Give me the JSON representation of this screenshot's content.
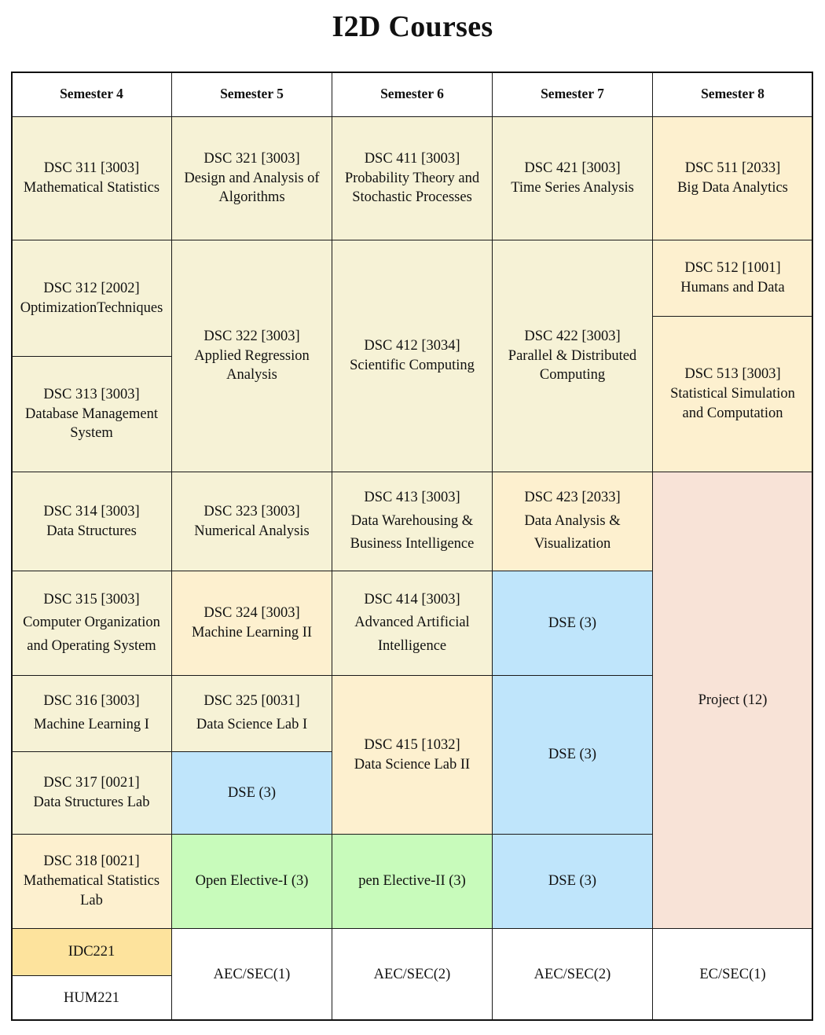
{
  "title": "I2D Courses",
  "headers": [
    "Semester 4",
    "Semester 5",
    "Semester 6",
    "Semester 7",
    "Semester 8"
  ],
  "cells": [
    {
      "id": "dsc311",
      "lines": [
        "DSC 311 [3003]",
        "Mathematical Statistics"
      ]
    },
    {
      "id": "dsc321",
      "lines": [
        "DSC 321 [3003]",
        "Design and Analysis of",
        "Algorithms"
      ]
    },
    {
      "id": "dsc411",
      "lines": [
        "DSC 411 [3003]",
        "Probability Theory and",
        "Stochastic Processes"
      ]
    },
    {
      "id": "dsc421",
      "lines": [
        "DSC 421 [3003]",
        "Time Series Analysis"
      ]
    },
    {
      "id": "dsc511",
      "lines": [
        "DSC 511 [2033]",
        "Big Data Analytics"
      ]
    },
    {
      "id": "dsc312",
      "lines": [
        "DSC 312 [2002]",
        "OptimizationTechniques"
      ]
    },
    {
      "id": "dsc313",
      "lines": [
        "DSC 313 [3003]",
        "Database Management",
        "System"
      ]
    },
    {
      "id": "dsc322",
      "lines": [
        "DSC 322 [3003]",
        "Applied Regression",
        "Analysis"
      ]
    },
    {
      "id": "dsc412",
      "lines": [
        "DSC 412 [3034]",
        "Scientific Computing"
      ]
    },
    {
      "id": "dsc422",
      "lines": [
        "DSC 422 [3003]",
        "Parallel & Distributed",
        "Computing"
      ]
    },
    {
      "id": "dsc512",
      "lines": [
        "DSC 512 [1001]",
        "Humans and Data"
      ]
    },
    {
      "id": "dsc513",
      "lines": [
        "DSC 513 [3003]",
        "Statistical Simulation",
        "and Computation"
      ]
    },
    {
      "id": "dsc314",
      "lines": [
        "DSC 314 [3003]",
        "Data Structures"
      ]
    },
    {
      "id": "dsc323",
      "lines": [
        "DSC 323 [3003]",
        "Numerical Analysis"
      ]
    },
    {
      "id": "dsc413",
      "lines": [
        "DSC 413 [3003]",
        "Data Warehousing &",
        "Business Intelligence"
      ]
    },
    {
      "id": "dsc423",
      "lines": [
        "DSC 423 [2033]",
        "Data Analysis &",
        "Visualization"
      ]
    },
    {
      "id": "project",
      "lines": [
        "Project (12)"
      ]
    },
    {
      "id": "dsc315",
      "lines": [
        "DSC 315 [3003]",
        "Computer Organization",
        "and Operating System"
      ]
    },
    {
      "id": "dsc324",
      "lines": [
        "DSC 324 [3003]",
        "Machine Learning II"
      ]
    },
    {
      "id": "dsc414",
      "lines": [
        "DSC 414 [3003]",
        "Advanced Artificial",
        "Intelligence"
      ]
    },
    {
      "id": "dse7a",
      "lines": [
        "DSE (3)"
      ]
    },
    {
      "id": "dsc316",
      "lines": [
        "DSC 316 [3003]",
        "Machine Learning I"
      ]
    },
    {
      "id": "dsc325",
      "lines": [
        "DSC 325 [0031]",
        "Data Science Lab I"
      ]
    },
    {
      "id": "dsc415",
      "lines": [
        "DSC 415 [1032]",
        "Data Science Lab II"
      ]
    },
    {
      "id": "dse7b",
      "lines": [
        "DSE (3)"
      ]
    },
    {
      "id": "dsc317",
      "lines": [
        "DSC 317 [0021]",
        "Data Structures Lab"
      ]
    },
    {
      "id": "dse5",
      "lines": [
        "DSE (3)"
      ]
    },
    {
      "id": "dsc318",
      "lines": [
        "DSC 318 [0021]",
        "Mathematical Statistics",
        "Lab"
      ]
    },
    {
      "id": "oe1",
      "lines": [
        "Open Elective-I (3)"
      ]
    },
    {
      "id": "oe2",
      "lines": [
        "pen Elective-II (3)"
      ]
    },
    {
      "id": "dse7c",
      "lines": [
        "DSE (3)"
      ]
    },
    {
      "id": "idc221",
      "lines": [
        "IDC221"
      ]
    },
    {
      "id": "hum221",
      "lines": [
        "HUM221"
      ]
    },
    {
      "id": "aec5",
      "lines": [
        "AEC/SEC(1)"
      ]
    },
    {
      "id": "aec6",
      "lines": [
        "AEC/SEC(2)"
      ]
    },
    {
      "id": "aec7",
      "lines": [
        "AEC/SEC(2)"
      ]
    },
    {
      "id": "ec8",
      "lines": [
        "EC/SEC(1)"
      ]
    }
  ],
  "colors": {
    "light_yellow": "#f6f2d6",
    "cream": "#fdf0cf",
    "dse_blue": "#bfe5fb",
    "elective_green": "#c8fbbb",
    "project_pink": "#f8e3d7",
    "idc_gold": "#fde39d",
    "border": "#1a1a1a"
  }
}
